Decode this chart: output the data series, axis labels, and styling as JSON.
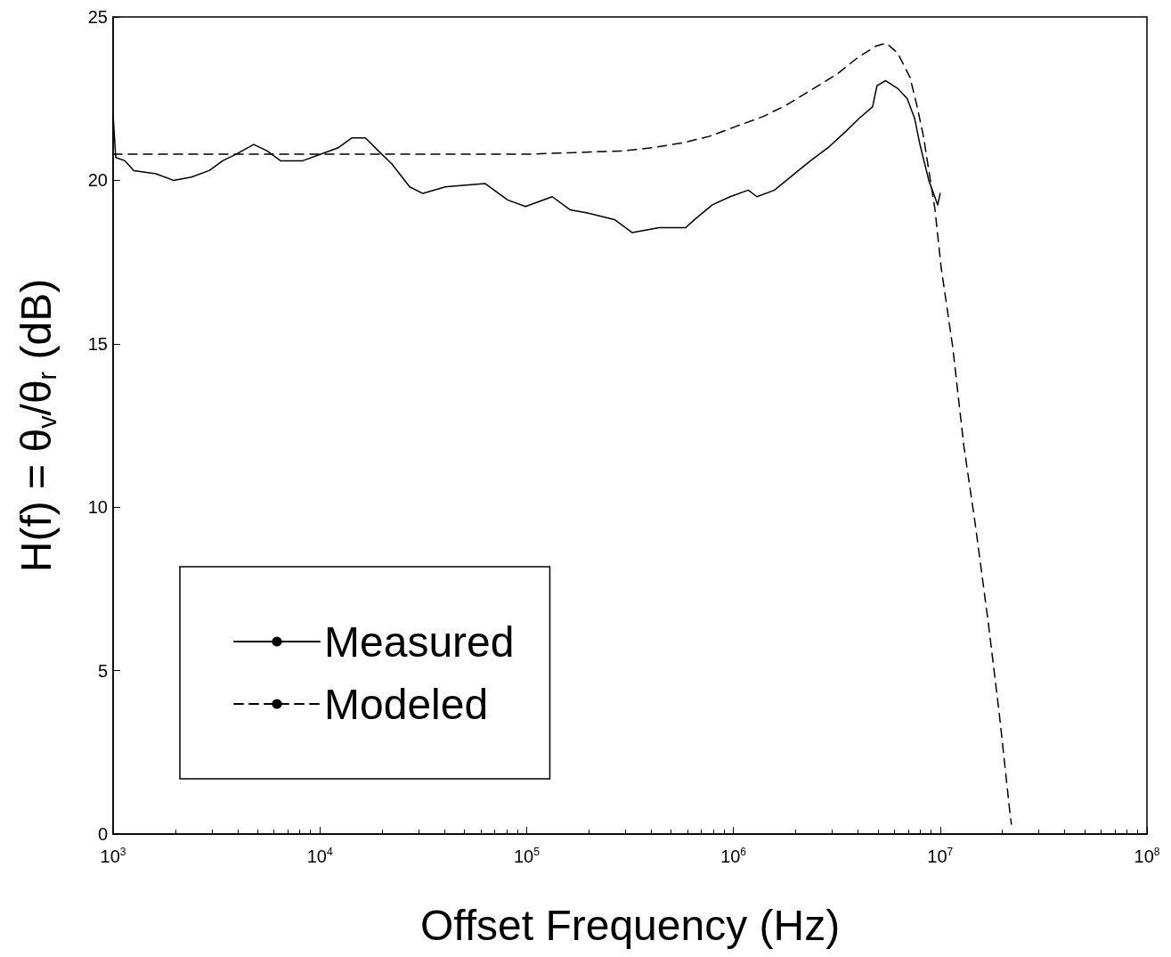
{
  "chart_data": {
    "type": "line",
    "xlabel": "Offset Frequency (Hz)",
    "ylabel": "H(f) = θ$_{v}$/θ$_{r}$ (dB)",
    "log": "x",
    "xlim": [
      1000,
      100000000
    ],
    "xticks": [
      {
        "value": 1000,
        "label": "10$^{3}$"
      },
      {
        "value": 10000,
        "label": "10$^{4}$"
      },
      {
        "value": 100000,
        "label": "10$^{5}$"
      },
      {
        "value": 1000000,
        "label": "10$^{6}$"
      },
      {
        "value": 10000000,
        "label": "10$^{7}$"
      },
      {
        "value": 100000000,
        "label": "10$^{8}$"
      }
    ],
    "ylim": [
      0,
      25
    ],
    "yticks": [
      0,
      5,
      10,
      15,
      20,
      25
    ],
    "grid": false,
    "legend": "bottom left",
    "marker": "none",
    "series": [
      {
        "name": "Measured",
        "color": "#000000",
        "line_style": "solid",
        "x": [
          1000,
          1030,
          1140,
          1260,
          1610,
          1960,
          2390,
          2920,
          3390,
          3930,
          4790,
          5560,
          6450,
          8270,
          10100,
          12300,
          14300,
          16600,
          19200,
          22300,
          27200,
          31500,
          40400,
          49300,
          63100,
          80900,
          98700,
          133000,
          162000,
          197000,
          266000,
          324000,
          437000,
          587000,
          649000,
          791000,
          964000,
          1180000,
          1300000,
          1580000,
          1930000,
          2360000,
          2870000,
          3500000,
          4060000,
          4710000,
          4950000,
          5450000,
          6260000,
          6930000,
          7520000,
          7980000,
          8810000,
          9730000,
          10000000
        ],
        "values": [
          22.0,
          20.7,
          20.6,
          20.3,
          20.2,
          20.0,
          20.1,
          20.3,
          20.6,
          20.8,
          21.1,
          20.9,
          20.6,
          20.6,
          20.8,
          21.0,
          21.3,
          21.3,
          20.9,
          20.5,
          19.8,
          19.6,
          19.8,
          19.85,
          19.9,
          19.4,
          19.2,
          19.5,
          19.1,
          19.0,
          18.8,
          18.4,
          18.55,
          18.55,
          18.8,
          19.25,
          19.5,
          19.7,
          19.5,
          19.7,
          20.15,
          20.6,
          21.0,
          21.5,
          21.9,
          22.25,
          22.9,
          23.05,
          22.8,
          22.5,
          21.9,
          21.1,
          20.0,
          19.25,
          19.6
        ]
      },
      {
        "name": "Modeled",
        "color": "#000000",
        "line_style": "dashed",
        "x": [
          1000,
          100000,
          294000,
          407000,
          571000,
          768000,
          1030000,
          1390000,
          1800000,
          2430000,
          3170000,
          3980000,
          4860000,
          5470000,
          6220000,
          7150000,
          7740000,
          8300000,
          9440000,
          10100000,
          11500000,
          13000000,
          14800000,
          17100000,
          19300000,
          21700000,
          22100000
        ],
        "values": [
          20.8,
          20.8,
          20.9,
          21.0,
          21.15,
          21.35,
          21.65,
          21.95,
          22.3,
          22.8,
          23.25,
          23.75,
          24.1,
          24.2,
          23.9,
          23.15,
          22.25,
          21.35,
          19.1,
          17.35,
          14.9,
          11.9,
          9.45,
          6.45,
          3.7,
          0.7,
          0.3
        ]
      }
    ]
  }
}
